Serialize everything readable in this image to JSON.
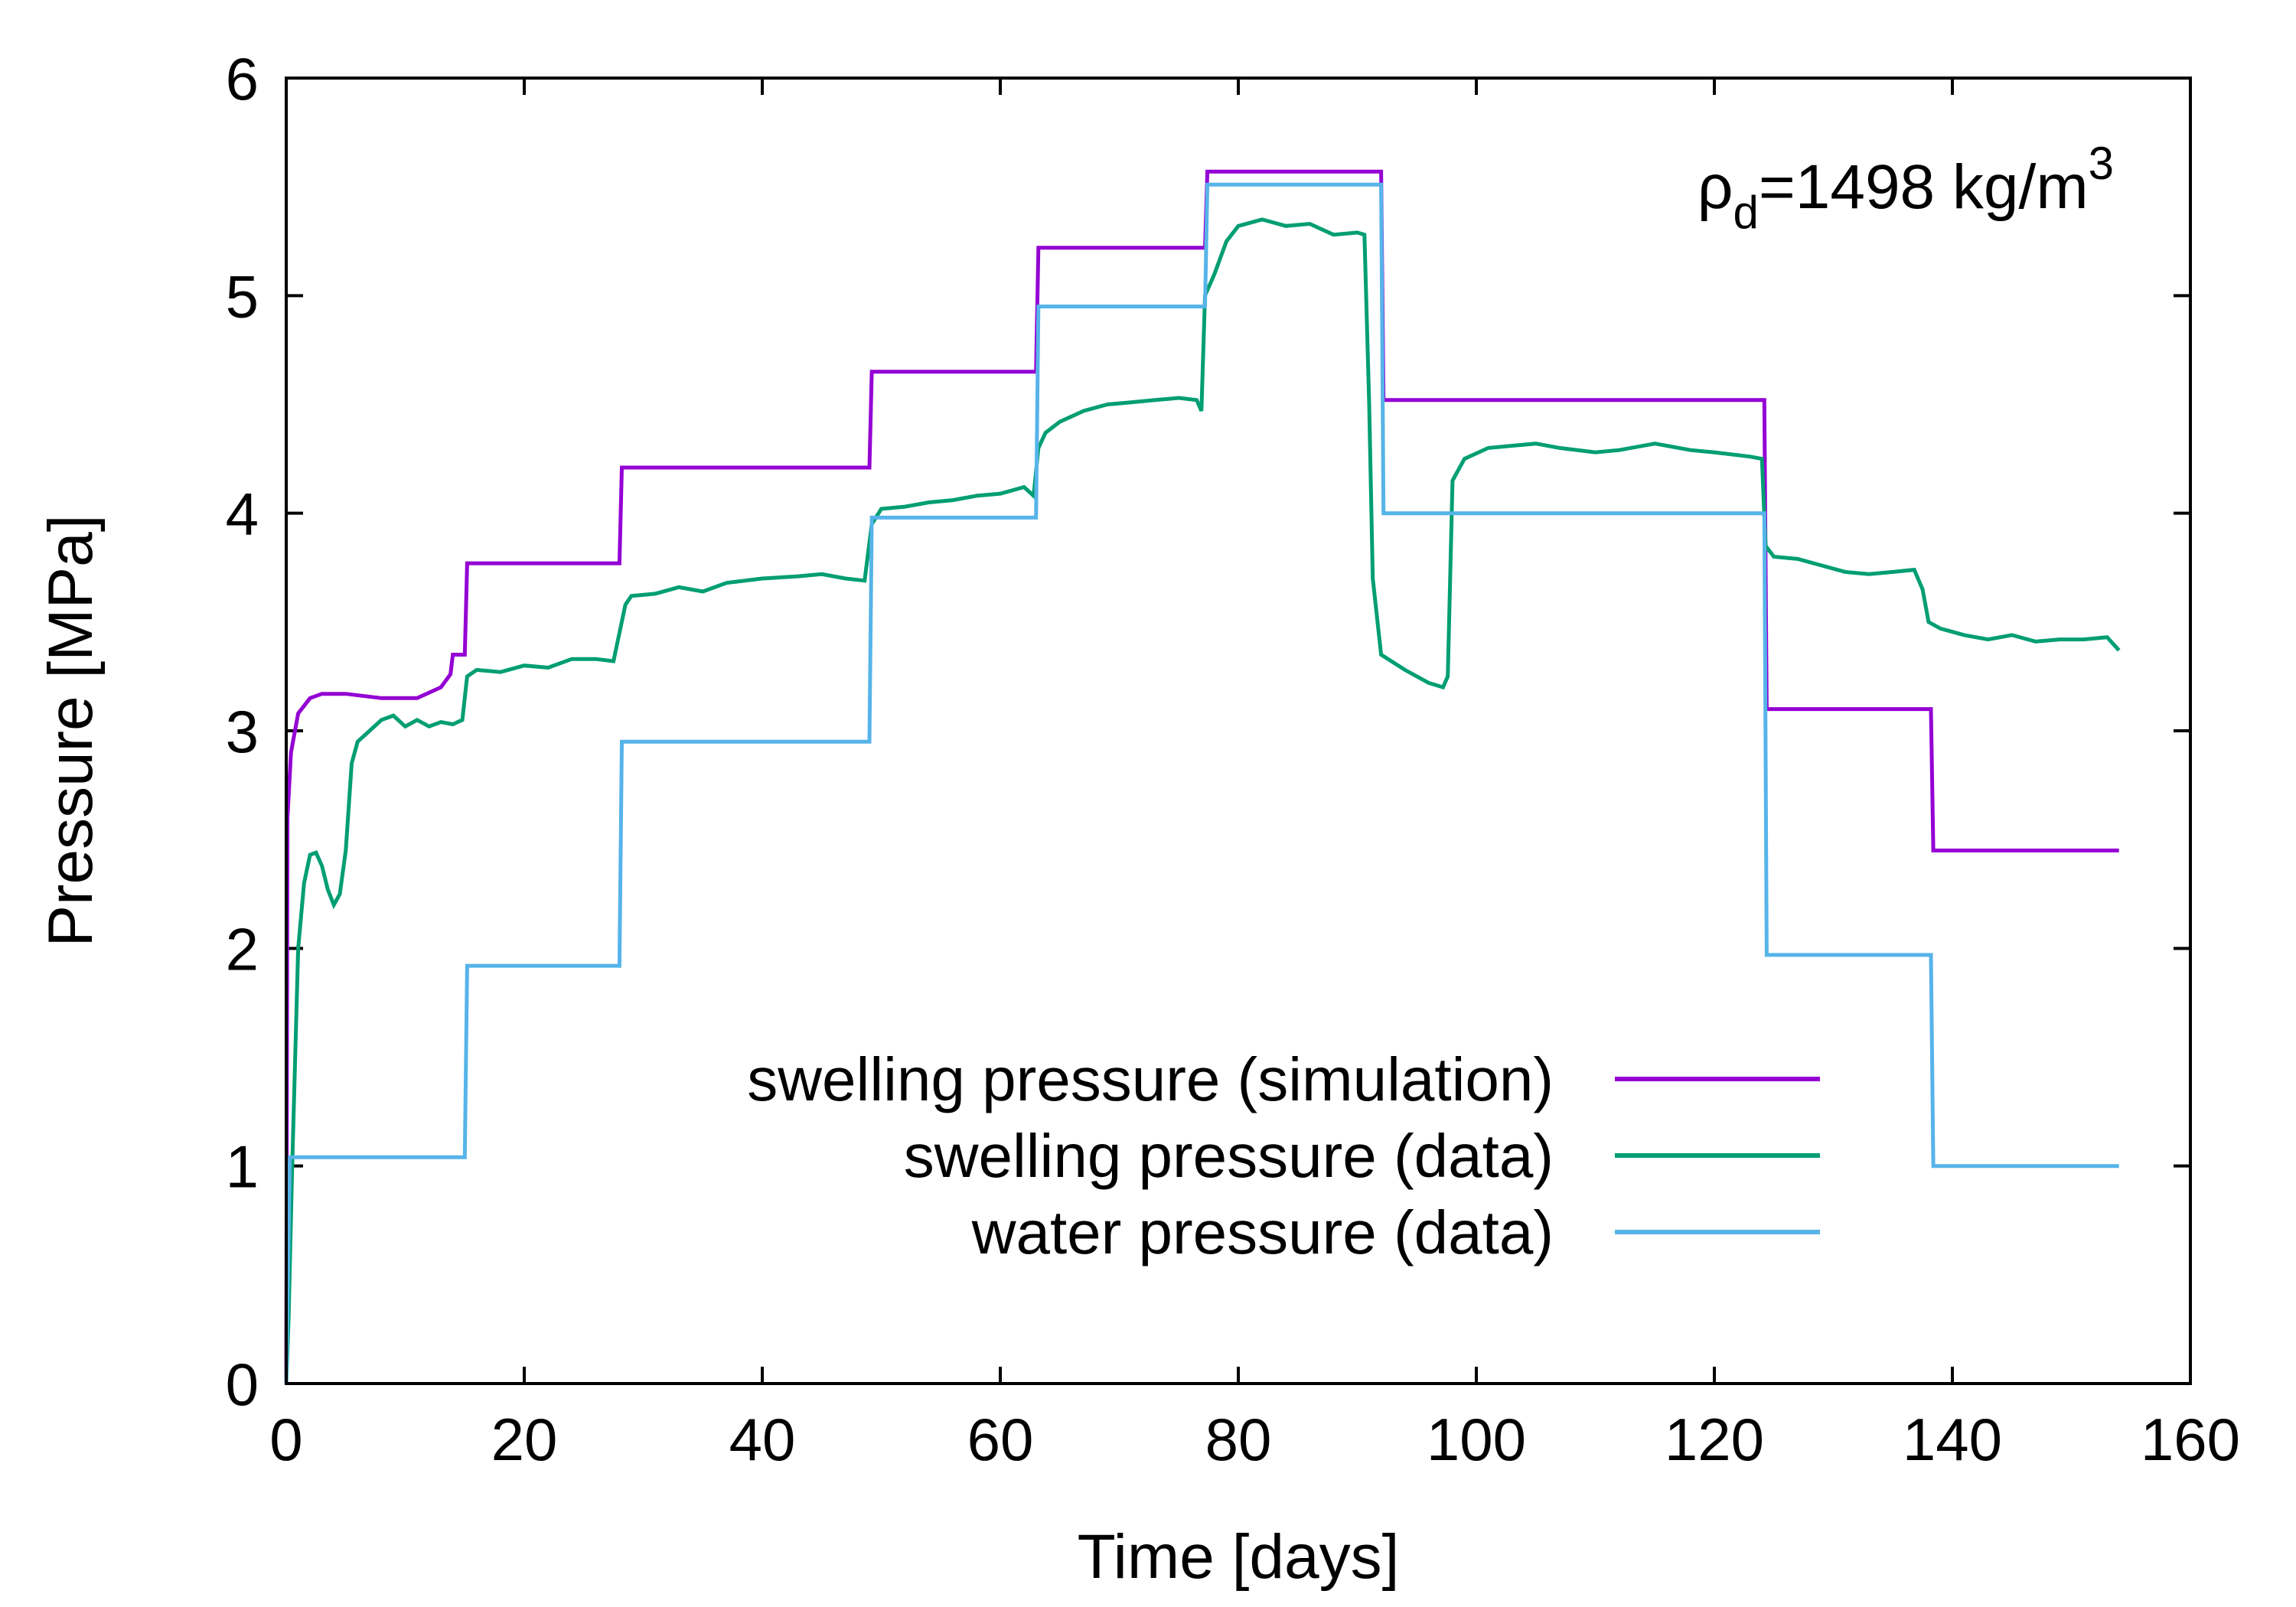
{
  "chart_data": {
    "type": "line",
    "title": "",
    "xlabel": "Time [days]",
    "ylabel": "Pressure [MPa]",
    "xlim": [
      0,
      160
    ],
    "ylim": [
      0,
      6
    ],
    "xticks": [
      "0",
      "20",
      "40",
      "60",
      "80",
      "100",
      "120",
      "140",
      "160"
    ],
    "yticks": [
      "0",
      "1",
      "2",
      "3",
      "4",
      "5",
      "6"
    ],
    "grid": false,
    "legend_position": "bottom-right",
    "annotation": {
      "prefix": "ρ",
      "subscript": "d",
      "mid": "=1498 kg/m",
      "superscript": "3"
    },
    "series": [
      {
        "name": "swelling pressure (simulation)",
        "color": "#9400d3",
        "points": [
          [
            0,
            0
          ],
          [
            0.1,
            2.6
          ],
          [
            0.4,
            2.9
          ],
          [
            1,
            3.08
          ],
          [
            2,
            3.15
          ],
          [
            3,
            3.17
          ],
          [
            5,
            3.17
          ],
          [
            8,
            3.15
          ],
          [
            11,
            3.15
          ],
          [
            13,
            3.2
          ],
          [
            13.8,
            3.26
          ],
          [
            14,
            3.35
          ],
          [
            15,
            3.35
          ],
          [
            15.2,
            3.77
          ],
          [
            28,
            3.77
          ],
          [
            28.2,
            4.21
          ],
          [
            49,
            4.21
          ],
          [
            49.2,
            4.65
          ],
          [
            63,
            4.65
          ],
          [
            63.2,
            5.22
          ],
          [
            77.2,
            5.22
          ],
          [
            77.4,
            5.57
          ],
          [
            92,
            5.57
          ],
          [
            92.2,
            4.52
          ],
          [
            124.2,
            4.52
          ],
          [
            124.4,
            3.1
          ],
          [
            138.2,
            3.1
          ],
          [
            138.4,
            2.45
          ],
          [
            154,
            2.45
          ]
        ]
      },
      {
        "name": "swelling pressure (data)",
        "color": "#009e73",
        "points": [
          [
            0,
            0
          ],
          [
            0.2,
            0.3
          ],
          [
            0.5,
            1.0
          ],
          [
            1,
            2.0
          ],
          [
            1.5,
            2.3
          ],
          [
            2,
            2.43
          ],
          [
            2.5,
            2.44
          ],
          [
            3,
            2.38
          ],
          [
            3.5,
            2.27
          ],
          [
            4,
            2.2
          ],
          [
            4.5,
            2.25
          ],
          [
            5,
            2.45
          ],
          [
            5.5,
            2.85
          ],
          [
            6,
            2.95
          ],
          [
            7,
            3.0
          ],
          [
            8,
            3.05
          ],
          [
            9,
            3.07
          ],
          [
            10,
            3.02
          ],
          [
            11,
            3.05
          ],
          [
            12,
            3.02
          ],
          [
            13,
            3.04
          ],
          [
            14,
            3.03
          ],
          [
            14.8,
            3.05
          ],
          [
            15.2,
            3.25
          ],
          [
            16,
            3.28
          ],
          [
            18,
            3.27
          ],
          [
            20,
            3.3
          ],
          [
            22,
            3.29
          ],
          [
            24,
            3.33
          ],
          [
            26,
            3.33
          ],
          [
            27.5,
            3.32
          ],
          [
            28,
            3.45
          ],
          [
            28.5,
            3.58
          ],
          [
            29,
            3.62
          ],
          [
            31,
            3.63
          ],
          [
            33,
            3.66
          ],
          [
            35,
            3.64
          ],
          [
            37,
            3.68
          ],
          [
            40,
            3.7
          ],
          [
            43,
            3.71
          ],
          [
            45,
            3.72
          ],
          [
            47,
            3.7
          ],
          [
            48.6,
            3.69
          ],
          [
            49.2,
            3.95
          ],
          [
            50,
            4.02
          ],
          [
            52,
            4.03
          ],
          [
            54,
            4.05
          ],
          [
            56,
            4.06
          ],
          [
            58,
            4.08
          ],
          [
            60,
            4.09
          ],
          [
            62,
            4.12
          ],
          [
            62.8,
            4.08
          ],
          [
            63.2,
            4.3
          ],
          [
            63.8,
            4.37
          ],
          [
            65,
            4.42
          ],
          [
            67,
            4.47
          ],
          [
            69,
            4.5
          ],
          [
            71,
            4.51
          ],
          [
            73,
            4.52
          ],
          [
            75,
            4.53
          ],
          [
            76.5,
            4.52
          ],
          [
            76.9,
            4.47
          ],
          [
            77.2,
            5.0
          ],
          [
            78,
            5.1
          ],
          [
            79,
            5.25
          ],
          [
            80,
            5.32
          ],
          [
            82,
            5.35
          ],
          [
            84,
            5.32
          ],
          [
            86,
            5.33
          ],
          [
            88,
            5.28
          ],
          [
            90,
            5.29
          ],
          [
            90.6,
            5.28
          ],
          [
            91,
            4.5
          ],
          [
            91.3,
            3.7
          ],
          [
            92,
            3.35
          ],
          [
            94,
            3.28
          ],
          [
            96,
            3.22
          ],
          [
            97.2,
            3.2
          ],
          [
            97.6,
            3.25
          ],
          [
            98,
            4.15
          ],
          [
            99,
            4.25
          ],
          [
            101,
            4.3
          ],
          [
            103,
            4.31
          ],
          [
            105,
            4.32
          ],
          [
            107,
            4.3
          ],
          [
            110,
            4.28
          ],
          [
            112,
            4.29
          ],
          [
            115,
            4.32
          ],
          [
            118,
            4.29
          ],
          [
            120,
            4.28
          ],
          [
            123,
            4.26
          ],
          [
            124,
            4.25
          ],
          [
            124.3,
            3.85
          ],
          [
            125,
            3.8
          ],
          [
            127,
            3.79
          ],
          [
            129,
            3.76
          ],
          [
            131,
            3.73
          ],
          [
            133,
            3.72
          ],
          [
            135,
            3.73
          ],
          [
            136.8,
            3.74
          ],
          [
            137.5,
            3.65
          ],
          [
            138,
            3.5
          ],
          [
            139,
            3.47
          ],
          [
            141,
            3.44
          ],
          [
            143,
            3.42
          ],
          [
            145,
            3.44
          ],
          [
            147,
            3.41
          ],
          [
            149,
            3.42
          ],
          [
            151,
            3.42
          ],
          [
            153,
            3.43
          ],
          [
            154,
            3.37
          ]
        ]
      },
      {
        "name": "water pressure (data)",
        "color": "#56b4e9",
        "points": [
          [
            0,
            0
          ],
          [
            0.3,
            1.04
          ],
          [
            15,
            1.04
          ],
          [
            15.2,
            1.92
          ],
          [
            28,
            1.92
          ],
          [
            28.2,
            2.95
          ],
          [
            49,
            2.95
          ],
          [
            49.2,
            3.98
          ],
          [
            63,
            3.98
          ],
          [
            63.2,
            4.95
          ],
          [
            77.2,
            4.95
          ],
          [
            77.4,
            5.51
          ],
          [
            92,
            5.51
          ],
          [
            92.2,
            4.0
          ],
          [
            124.2,
            4.0
          ],
          [
            124.4,
            1.97
          ],
          [
            138.2,
            1.97
          ],
          [
            138.4,
            1.0
          ],
          [
            154,
            1.0
          ]
        ]
      }
    ]
  }
}
